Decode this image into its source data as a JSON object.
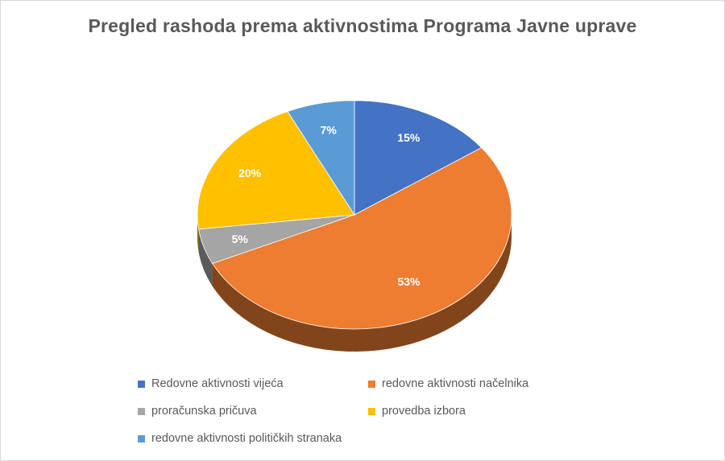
{
  "chart_data": {
    "type": "pie",
    "title": "Pregled rashoda prema aktivnostima Programa Javne uprave",
    "categories": [
      "Redovne aktivnosti vijeća",
      "redovne aktivnosti načelnika",
      "proračunska pričuva",
      "provedba izbora",
      "redovne aktivnosti političkih stranaka"
    ],
    "values": [
      15,
      53,
      5,
      20,
      7
    ],
    "labels": [
      "15%",
      "53%",
      "5%",
      "20%",
      "7%"
    ],
    "colors": [
      "#4472c4",
      "#ed7d31",
      "#a5a5a5",
      "#ffc000",
      "#5b9bd5"
    ],
    "legend_position": "bottom",
    "style": "3d"
  }
}
